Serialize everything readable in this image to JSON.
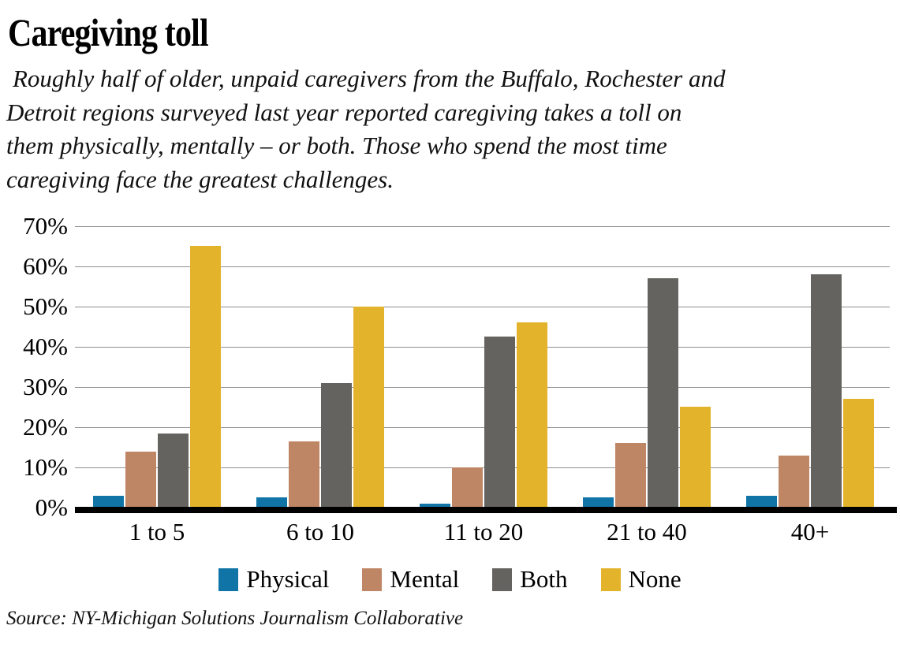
{
  "header": {
    "title": "Caregiving toll",
    "subtitle_lines": [
      " Roughly half of older, unpaid caregivers from the Buffalo, Rochester and",
      "Detroit regions surveyed last year reported caregiving takes a toll on",
      "them physically, mentally – or both. Those who spend the most time",
      "caregiving face the greatest challenges."
    ]
  },
  "chart_data": {
    "type": "bar",
    "title": "Caregiving toll",
    "categories": [
      "1 to 5",
      "6 to 10",
      "11 to 20",
      "21 to 40",
      "40+"
    ],
    "series": [
      {
        "name": "Physical",
        "color": "#1074a6",
        "values": [
          3,
          2.5,
          1,
          2.5,
          3
        ]
      },
      {
        "name": "Mental",
        "color": "#bf8666",
        "values": [
          14,
          16.5,
          10,
          16,
          13
        ]
      },
      {
        "name": "Both",
        "color": "#646360",
        "values": [
          18.5,
          31,
          42.5,
          57,
          58
        ]
      },
      {
        "name": "None",
        "color": "#e3b32b",
        "values": [
          65,
          50,
          46,
          25,
          27
        ]
      }
    ],
    "xlabel": "",
    "ylabel": "",
    "ylim": [
      0,
      70
    ],
    "yticks": [
      "0%",
      "10%",
      "20%",
      "30%",
      "40%",
      "50%",
      "60%",
      "70%"
    ],
    "grid": true,
    "legend_position": "bottom"
  },
  "footer": {
    "source": "Source: NY-Michigan Solutions Journalism Collaborative"
  }
}
